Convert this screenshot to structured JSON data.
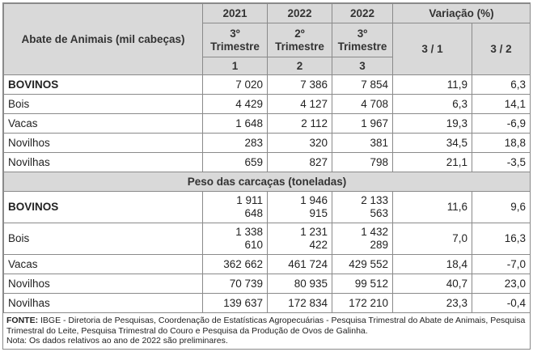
{
  "header": {
    "row_label": "Abate de Animais (mil cabeças)",
    "years": [
      "2021",
      "2022",
      "2022"
    ],
    "variation_label": "Variação (%)",
    "periods": [
      "3º\nTrimestre",
      "2º\nTrimestre",
      "3º\nTrimestre"
    ],
    "period_numbers": [
      "1",
      "2",
      "3"
    ],
    "variation_cols": [
      "3 / 1",
      "3 / 2"
    ]
  },
  "abate_rows": [
    {
      "name": "BOVINOS",
      "c1": "7 020",
      "c2": "7 386",
      "c3": "7 854",
      "v31": "11,9",
      "v32": "6,3"
    },
    {
      "name": "Bois",
      "c1": "4 429",
      "c2": "4 127",
      "c3": "4 708",
      "v31": "6,3",
      "v32": "14,1"
    },
    {
      "name": "Vacas",
      "c1": "1 648",
      "c2": "2 112",
      "c3": "1 967",
      "v31": "19,3",
      "v32": "-6,9"
    },
    {
      "name": "Novilhos",
      "c1": "283",
      "c2": "320",
      "c3": "381",
      "v31": "34,5",
      "v32": "18,8"
    },
    {
      "name": "Novilhas",
      "c1": "659",
      "c2": "827",
      "c3": "798",
      "v31": "21,1",
      "v32": "-3,5"
    }
  ],
  "section_title": "Peso das carcaças (toneladas)",
  "peso_rows": [
    {
      "name": "BOVINOS",
      "c1": "1 911\n648",
      "c2": "1 946\n915",
      "c3": "2 133\n563",
      "v31": "11,6",
      "v32": "9,6"
    },
    {
      "name": "Bois",
      "c1": "1 338\n610",
      "c2": "1 231\n422",
      "c3": "1 432\n289",
      "v31": "7,0",
      "v32": "16,3"
    },
    {
      "name": "Vacas",
      "c1": "362 662",
      "c2": "461 724",
      "c3": "429 552",
      "v31": "18,4",
      "v32": "-7,0"
    },
    {
      "name": "Novilhos",
      "c1": "70 739",
      "c2": "80 935",
      "c3": "99 512",
      "v31": "40,7",
      "v32": "23,0"
    },
    {
      "name": "Novilhas",
      "c1": "139 637",
      "c2": "172 834",
      "c3": "172 210",
      "v31": "23,3",
      "v32": "-0,4"
    }
  ],
  "notes": {
    "fonte_label": "FONTE:",
    "fonte_text": " IBGE - Diretoria de Pesquisas, Coordenação de Estatísticas Agropecuárias - Pesquisa Trimestral do Abate de Animais, Pesquisa Trimestral do Leite, Pesquisa Trimestral do Couro e Pesquisa da Produção de Ovos de Galinha.",
    "nota_text": "Nota: Os dados relativos ao ano de 2022 são preliminares."
  }
}
